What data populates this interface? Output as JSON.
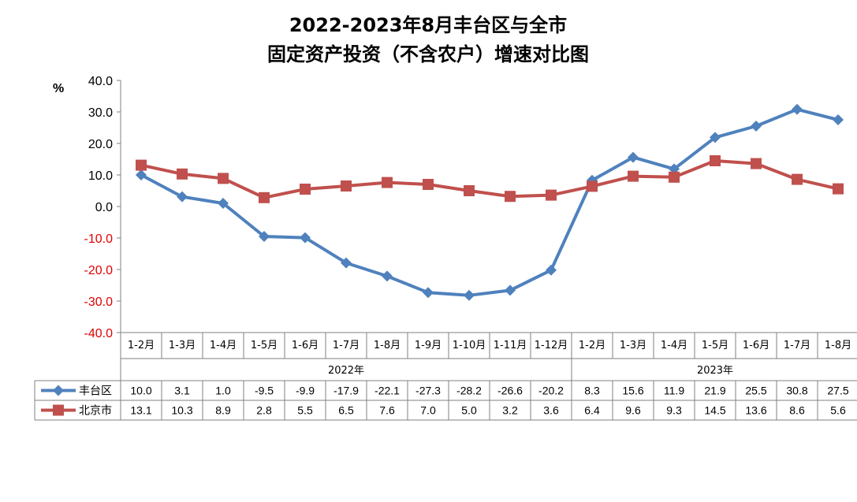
{
  "chart_data": {
    "type": "line",
    "title_line1": "2022-2023年8月丰台区与全市",
    "title_line2": "固定资产投资（不含农户）增速对比图",
    "ylabel": "%",
    "ylim": [
      -40,
      40
    ],
    "yticks": [
      "40.0",
      "30.0",
      "20.0",
      "10.0",
      "0.0",
      "-10.0",
      "-20.0",
      "-30.0",
      "-40.0"
    ],
    "categories": [
      "1-2月",
      "1-3月",
      "1-4月",
      "1-5月",
      "1-6月",
      "1-7月",
      "1-8月",
      "1-9月",
      "1-10月",
      "1-11月",
      "1-12月",
      "1-2月",
      "1-3月",
      "1-4月",
      "1-5月",
      "1-6月",
      "1-7月",
      "1-8月"
    ],
    "groups": [
      {
        "label": "2022年",
        "count": 11
      },
      {
        "label": "2023年",
        "count": 7
      }
    ],
    "series": [
      {
        "name": "丰台区",
        "color": "#4F81BD",
        "marker": "diamond",
        "values": [
          10.0,
          3.1,
          1.0,
          -9.5,
          -9.9,
          -17.9,
          -22.1,
          -27.3,
          -28.2,
          -26.6,
          -20.2,
          8.3,
          15.6,
          11.9,
          21.9,
          25.5,
          30.8,
          27.5
        ],
        "labels": [
          "10.0",
          "3.1",
          "1.0",
          "-9.5",
          "-9.9",
          "-17.9",
          "-22.1",
          "-27.3",
          "-28.2",
          "-26.6",
          "-20.2",
          "8.3",
          "15.6",
          "11.9",
          "21.9",
          "25.5",
          "30.8",
          "27.5"
        ]
      },
      {
        "name": "北京市",
        "color": "#C0504D",
        "marker": "square",
        "values": [
          13.1,
          10.3,
          8.9,
          2.8,
          5.5,
          6.5,
          7.6,
          7.0,
          5.0,
          3.2,
          3.6,
          6.4,
          9.6,
          9.3,
          14.5,
          13.6,
          8.6,
          5.6
        ],
        "labels": [
          "13.1",
          "10.3",
          "8.9",
          "2.8",
          "5.5",
          "6.5",
          "7.6",
          "7.0",
          "5.0",
          "3.2",
          "3.6",
          "6.4",
          "9.6",
          "9.3",
          "14.5",
          "13.6",
          "8.6",
          "5.6"
        ]
      }
    ],
    "grid": false,
    "legend": "data-table-left"
  }
}
